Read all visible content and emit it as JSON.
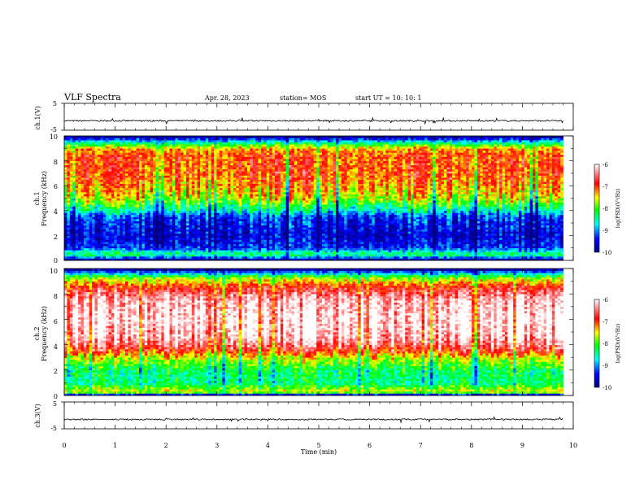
{
  "header": {
    "title": "VLF Spectra",
    "date": "Apr. 28, 2023",
    "station": "station= MOS",
    "start": "start UT =  10: 10: 1"
  },
  "colors": {
    "background": "#ffffff",
    "axis": "#000000",
    "colormap": [
      "#000080",
      "#0000ff",
      "#00ffff",
      "#00ff00",
      "#ffff00",
      "#ff0000",
      "#ffffff"
    ]
  },
  "chart_data": [
    {
      "type": "line",
      "ylabel": "ch.1(V)",
      "y_ticks": [
        "5",
        "-5"
      ],
      "ylim": [
        -5,
        5
      ],
      "xlim": [
        0,
        10
      ],
      "baseline_value": -1.5
    },
    {
      "type": "heatmap",
      "ylabel_top": "ch.1",
      "ylabel": "Frequency (kHz)",
      "y_ticks": [
        "0",
        "2",
        "4",
        "6",
        "8",
        "10"
      ],
      "ylim": [
        0,
        10
      ],
      "xlim": [
        0,
        10
      ],
      "data_end_min": 9.8,
      "colorbar_label": "log(PSD)(V²/Hz)",
      "colorbar_ticks": [
        "-6",
        "-7",
        "-8",
        "-9",
        "-10"
      ],
      "colorbar_range": [
        -10,
        -6
      ],
      "spectrum_profile_khz_log_psd": [
        [
          0,
          -10
        ],
        [
          0.5,
          -8.2
        ],
        [
          1,
          -9.3
        ],
        [
          2,
          -9.6
        ],
        [
          3.5,
          -9.3
        ],
        [
          4,
          -8.6
        ],
        [
          5,
          -7.6
        ],
        [
          6,
          -7.2
        ],
        [
          7,
          -7.0
        ],
        [
          8.5,
          -7.0
        ],
        [
          9,
          -7.3
        ],
        [
          9.5,
          -8.6
        ],
        [
          10,
          -10
        ]
      ]
    },
    {
      "type": "heatmap",
      "ylabel_top": "ch.2",
      "ylabel": "Frequency (kHz)",
      "y_ticks": [
        "0",
        "2",
        "4",
        "6",
        "8",
        "10"
      ],
      "ylim": [
        0,
        10
      ],
      "xlim": [
        0,
        10
      ],
      "data_end_min": 9.8,
      "colorbar_label": "log(PSD)(V²/Hz)",
      "colorbar_ticks": [
        "-6",
        "-7",
        "-8",
        "-9",
        "-10"
      ],
      "colorbar_range": [
        -10,
        -6
      ],
      "spectrum_profile_khz_log_psd": [
        [
          0,
          -10
        ],
        [
          0.3,
          -7.5
        ],
        [
          1,
          -8.4
        ],
        [
          2,
          -8.3
        ],
        [
          3,
          -7.6
        ],
        [
          3.6,
          -6.8
        ],
        [
          4.5,
          -6.2
        ],
        [
          6,
          -6.0
        ],
        [
          7.5,
          -6.2
        ],
        [
          8.5,
          -6.8
        ],
        [
          9.3,
          -7.8
        ],
        [
          10,
          -10
        ]
      ]
    },
    {
      "type": "line",
      "ylabel": "ch.3(V)",
      "y_ticks": [
        "5",
        "-5"
      ],
      "ylim": [
        -5,
        5
      ],
      "xlim": [
        0,
        10
      ],
      "baseline_value": -1.5
    }
  ],
  "x_axis": {
    "label": "Time (min)",
    "ticks": [
      "0",
      "1",
      "2",
      "3",
      "4",
      "5",
      "6",
      "7",
      "8",
      "9",
      "10"
    ]
  }
}
